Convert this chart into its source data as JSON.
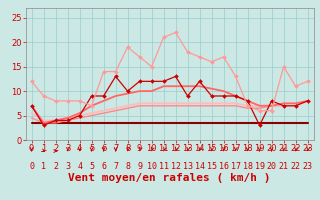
{
  "xlabel": "Vent moyen/en rafales ( km/h )",
  "xlim": [
    -0.5,
    23.5
  ],
  "ylim": [
    0,
    27
  ],
  "yticks": [
    0,
    5,
    10,
    15,
    20,
    25
  ],
  "xticks": [
    0,
    1,
    2,
    3,
    4,
    5,
    6,
    7,
    8,
    9,
    10,
    11,
    12,
    13,
    14,
    15,
    16,
    17,
    18,
    19,
    20,
    21,
    22,
    23
  ],
  "bg_color": "#cce8e4",
  "grid_color": "#99cccc",
  "line_light_pink": {
    "y": [
      12,
      9,
      8,
      8,
      8,
      7,
      14,
      14,
      19,
      17,
      15,
      21,
      22,
      18,
      17,
      16,
      17,
      13,
      7,
      6,
      6,
      15,
      11,
      12
    ],
    "color": "#ff9999",
    "lw": 0.9,
    "marker": "D",
    "ms": 2.0
  },
  "line_dark_red": {
    "y": [
      7,
      3,
      4,
      4,
      5,
      9,
      9,
      13,
      10,
      12,
      12,
      12,
      13,
      9,
      12,
      9,
      9,
      9,
      8,
      3,
      8,
      7,
      7,
      8
    ],
    "color": "#cc0000",
    "lw": 0.9,
    "marker": "D",
    "ms": 2.0
  },
  "line_smooth_upper": {
    "y": [
      7,
      3.5,
      4,
      4.5,
      5.5,
      7,
      8,
      9,
      9.5,
      10,
      10,
      11,
      11,
      11,
      11,
      10.5,
      10,
      9,
      8,
      7,
      7,
      7.5,
      7.5,
      8
    ],
    "color": "#ff6666",
    "lw": 1.3
  },
  "line_flat_low": {
    "y": [
      3.5,
      3.5,
      3.5,
      3.5,
      3.5,
      3.5,
      3.5,
      3.5,
      3.5,
      3.5,
      3.5,
      3.5,
      3.5,
      3.5,
      3.5,
      3.5,
      3.5,
      3.5,
      3.5,
      3.5,
      3.5,
      3.5,
      3.5,
      3.5
    ],
    "color": "#880000",
    "lw": 1.5
  },
  "line_smooth_mid": {
    "y": [
      5.5,
      4,
      4,
      4.5,
      5,
      5.5,
      6,
      6.5,
      7,
      7.5,
      7.5,
      7.5,
      7.5,
      7.5,
      7.5,
      7.5,
      7.5,
      7.5,
      7,
      7,
      7,
      7,
      7,
      8
    ],
    "color": "#ffbbbb",
    "lw": 1.3
  },
  "line_smooth_low": {
    "y": [
      4.5,
      3.5,
      3.5,
      4,
      4.5,
      5,
      5.5,
      6,
      6.5,
      7,
      7,
      7,
      7,
      7,
      7,
      7,
      7,
      7,
      6.5,
      6.5,
      7,
      7,
      7,
      8
    ],
    "color": "#ff8888",
    "lw": 1.0
  },
  "xlabel_color": "#cc0000",
  "xlabel_fontsize": 8,
  "tick_color": "#cc0000",
  "tick_fontsize": 6,
  "arrow_color": "#cc0000"
}
